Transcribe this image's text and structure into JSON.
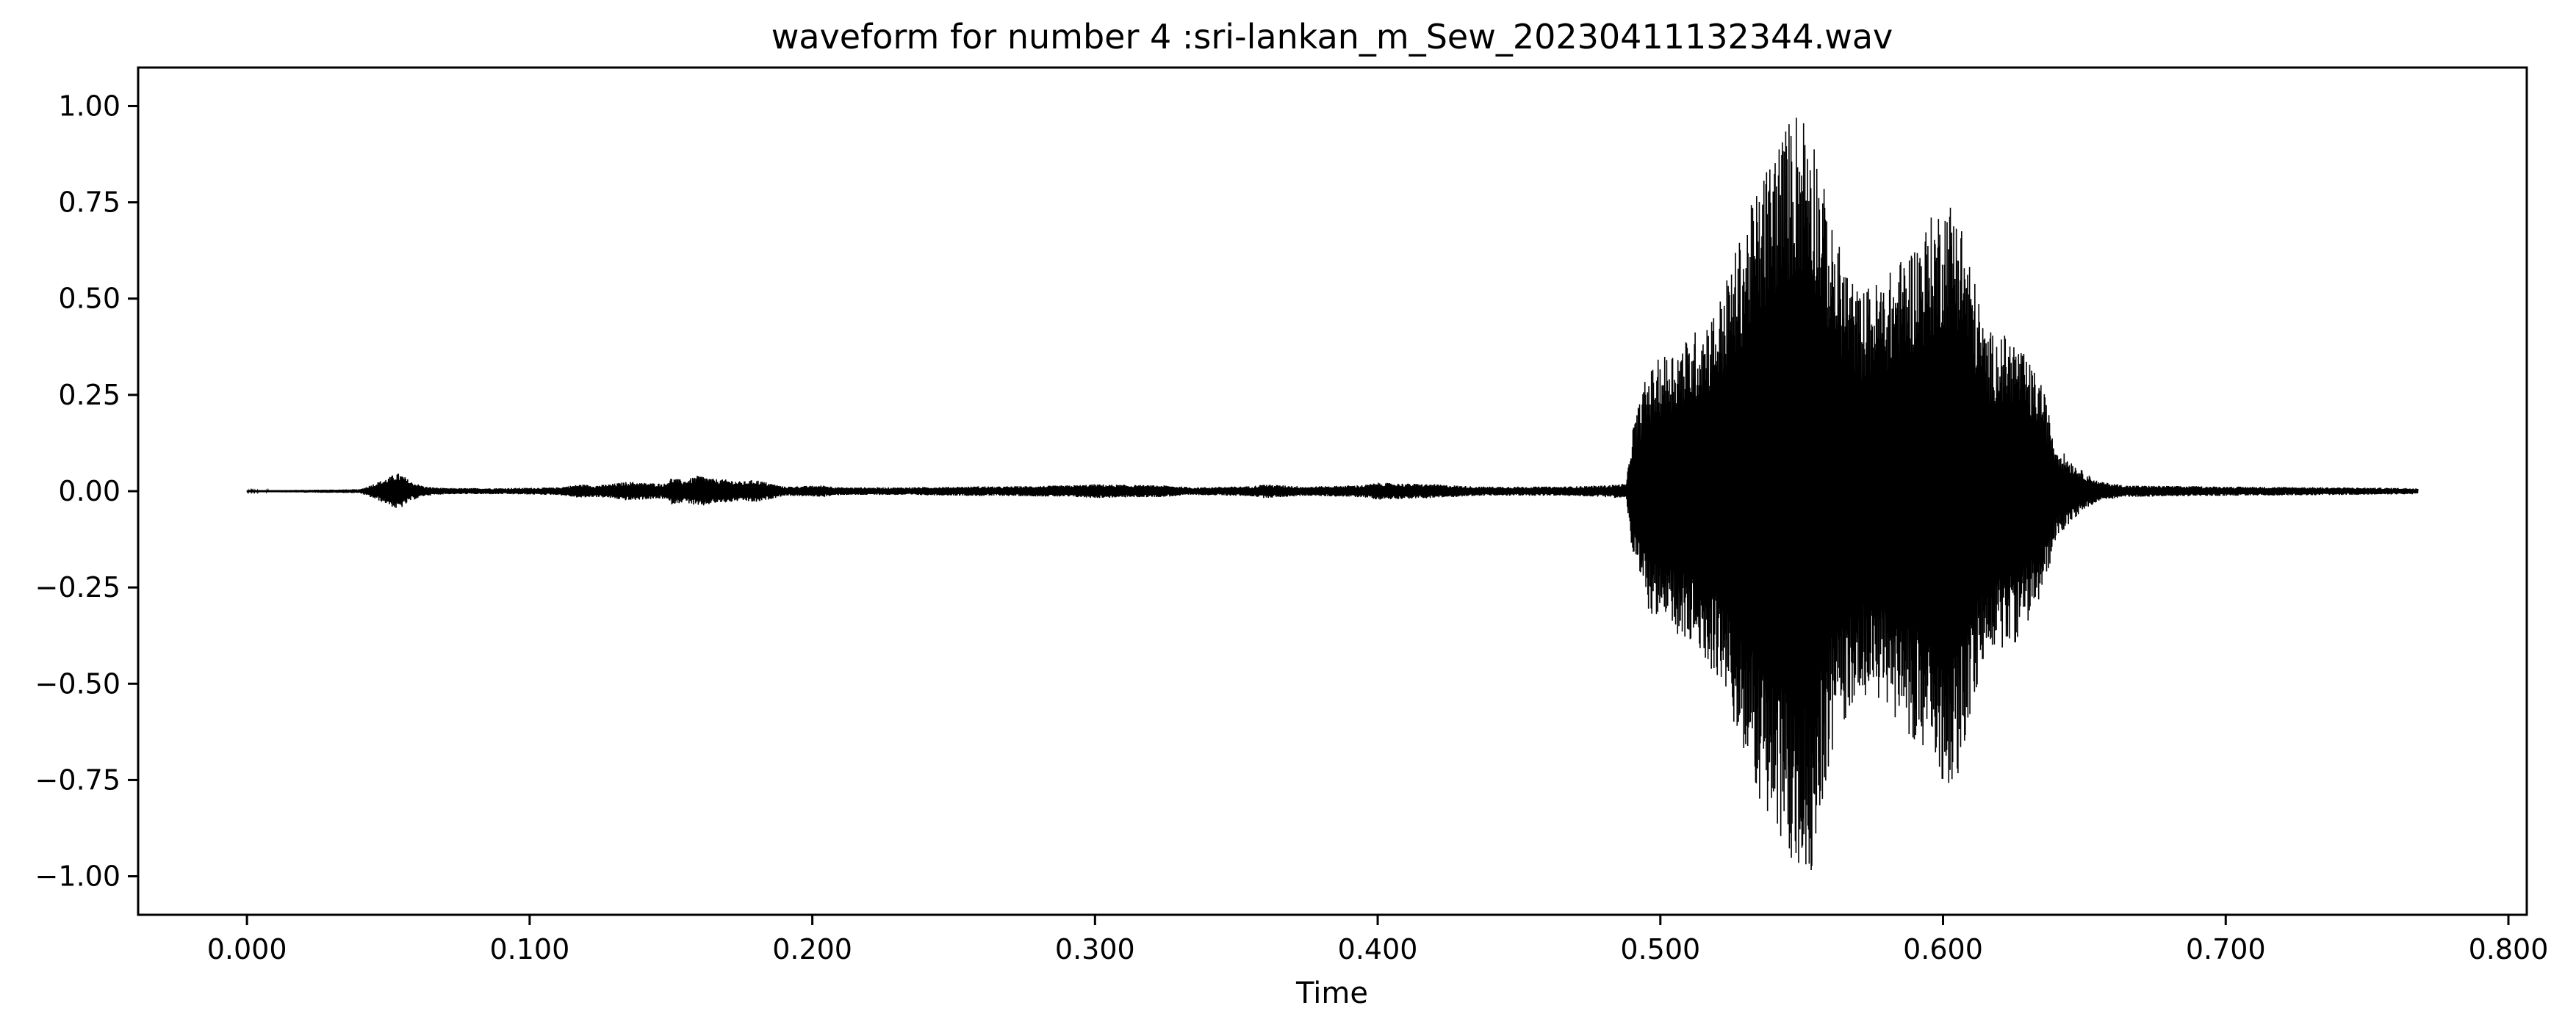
{
  "chart_data": {
    "type": "line",
    "title": "waveform for number 4 :sri-lankan_m_Sew_20230411132344.wav",
    "xlabel": "Time",
    "ylabel": "",
    "xlim": [
      -0.0385,
      0.8065
    ],
    "ylim": [
      -1.1,
      1.1
    ],
    "x_ticks": [
      0.0,
      0.1,
      0.2,
      0.3,
      0.4,
      0.5,
      0.6,
      0.7,
      0.8
    ],
    "x_tick_labels": [
      "0.000",
      "0.100",
      "0.200",
      "0.300",
      "0.400",
      "0.500",
      "0.600",
      "0.700",
      "0.800"
    ],
    "y_ticks": [
      1.0,
      0.75,
      0.5,
      0.25,
      0.0,
      -0.25,
      -0.5,
      -0.75,
      -1.0
    ],
    "y_tick_labels": [
      "1.00",
      "0.75",
      "0.50",
      "0.25",
      "0.00",
      "−0.25",
      "−0.50",
      "−0.75",
      "−1.00"
    ],
    "grid": false,
    "line_color": "#000000",
    "series": [
      {
        "envelope": {
          "time": [
            0.0,
            0.04,
            0.05,
            0.053,
            0.055,
            0.058,
            0.063,
            0.07,
            0.09,
            0.11,
            0.118,
            0.123,
            0.128,
            0.135,
            0.14,
            0.148,
            0.15,
            0.155,
            0.16,
            0.165,
            0.17,
            0.175,
            0.18,
            0.19,
            0.204,
            0.21,
            0.23,
            0.255,
            0.26,
            0.265,
            0.29,
            0.3,
            0.315,
            0.325,
            0.335,
            0.355,
            0.36,
            0.375,
            0.395,
            0.4,
            0.41,
            0.42,
            0.435,
            0.45,
            0.465,
            0.48,
            0.488,
            0.49,
            0.495,
            0.5,
            0.51,
            0.52,
            0.53,
            0.54,
            0.548,
            0.553,
            0.56,
            0.57,
            0.58,
            0.59,
            0.6,
            0.605,
            0.615,
            0.625,
            0.635,
            0.64,
            0.648,
            0.655,
            0.665,
            0.7,
            0.74,
            0.768
          ],
          "amplitude": [
            0.002,
            0.005,
            0.035,
            0.048,
            0.042,
            0.025,
            0.012,
            0.008,
            0.008,
            0.01,
            0.018,
            0.015,
            0.018,
            0.025,
            0.022,
            0.02,
            0.035,
            0.028,
            0.042,
            0.032,
            0.03,
            0.025,
            0.03,
            0.012,
            0.015,
            0.01,
            0.01,
            0.012,
            0.013,
            0.012,
            0.015,
            0.018,
            0.016,
            0.015,
            0.01,
            0.013,
            0.018,
            0.012,
            0.016,
            0.022,
            0.02,
            0.018,
            0.012,
            0.012,
            0.012,
            0.015,
            0.02,
            0.16,
            0.3,
            0.35,
            0.4,
            0.48,
            0.7,
            0.9,
            1.0,
            1.0,
            0.7,
            0.52,
            0.56,
            0.65,
            0.76,
            0.76,
            0.42,
            0.4,
            0.28,
            0.12,
            0.06,
            0.025,
            0.015,
            0.012,
            0.01,
            0.008
          ]
        }
      }
    ]
  }
}
